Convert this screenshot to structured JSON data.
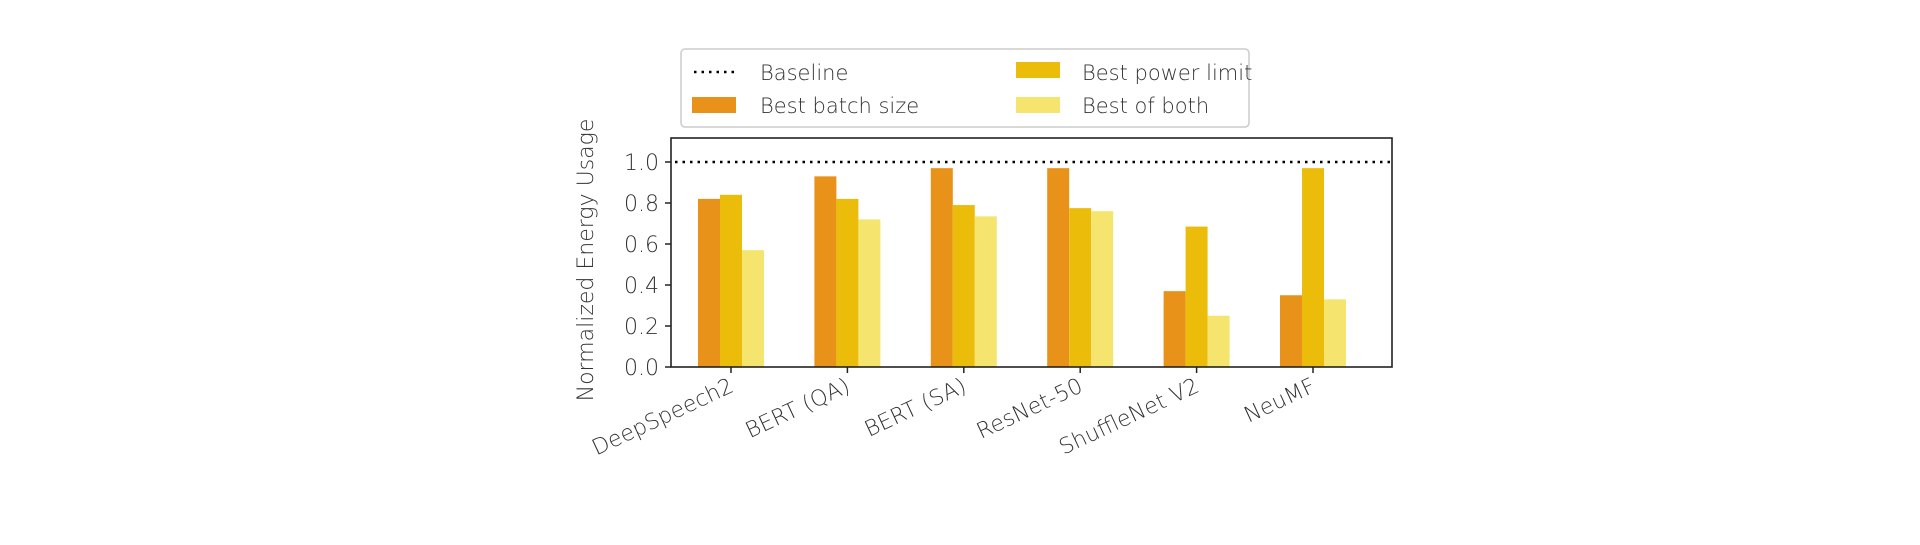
{
  "chart_data": {
    "type": "bar",
    "title": "",
    "xlabel": "",
    "ylabel": "Normalized Energy Usage",
    "ylim": [
      0,
      1.1
    ],
    "yticks": [
      "0.0",
      "0.2",
      "0.4",
      "0.6",
      "0.8",
      "1.0"
    ],
    "grid": false,
    "legend_placement": "top (above plot)",
    "categories": [
      "DeepSpeech2",
      "BERT (QA)",
      "BERT (SA)",
      "ResNet-50",
      "ShuffleNet V2",
      "NeuMF"
    ],
    "baseline": {
      "name": "Baseline",
      "value": 1.0,
      "style": "dotted",
      "color": "#000000"
    },
    "series": [
      {
        "name": "Best batch size",
        "color": "#E8921A",
        "values": [
          0.82,
          0.93,
          0.97,
          0.97,
          0.37,
          0.35
        ]
      },
      {
        "name": "Best power limit",
        "color": "#EBBD0A",
        "values": [
          0.84,
          0.82,
          0.79,
          0.775,
          0.685,
          0.97
        ]
      },
      {
        "name": "Best of both",
        "color": "#F5E56E",
        "values": [
          0.57,
          0.72,
          0.735,
          0.76,
          0.25,
          0.33
        ]
      }
    ]
  }
}
